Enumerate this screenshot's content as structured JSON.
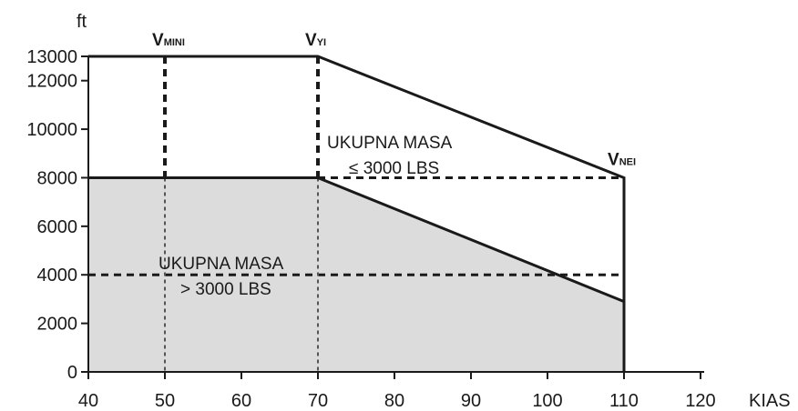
{
  "chart_data": {
    "type": "area",
    "xlabel": "KIAS",
    "ylabel": "ft",
    "xlim": [
      40,
      120
    ],
    "ylim": [
      0,
      13000
    ],
    "x_ticks": [
      "40",
      "50",
      "60",
      "70",
      "80",
      "90",
      "100",
      "110",
      "120"
    ],
    "y_ticks": [
      "0",
      "2000",
      "4000",
      "6000",
      "8000",
      "10000",
      "12000",
      "13000"
    ],
    "grid": false,
    "envelopes": [
      {
        "label_line1": "UKUPNA MASA",
        "label_line2": "≤ 3000 LBS",
        "points": [
          [
            40,
            13000
          ],
          [
            70,
            13000
          ],
          [
            110,
            8000
          ],
          [
            110,
            0
          ]
        ]
      },
      {
        "label_line1": "UKUPNA MASA",
        "label_line2": "> 3000 LBS",
        "fill": "#dcdcdc",
        "points": [
          [
            40,
            8000
          ],
          [
            70,
            8000
          ],
          [
            110,
            2900
          ],
          [
            110,
            0
          ]
        ]
      }
    ],
    "speed_markers": [
      {
        "main": "V",
        "sub": "MINI",
        "x": 50
      },
      {
        "main": "V",
        "sub": "YI",
        "x": 70
      },
      {
        "main": "V",
        "sub": "NEI",
        "x": 110,
        "y": 8000
      }
    ],
    "reference_lines": [
      {
        "orientation": "horizontal",
        "y": 8000,
        "x_from": 70,
        "x_to": 110,
        "style": "dashed"
      },
      {
        "orientation": "horizontal",
        "y": 4000,
        "x_from": 40,
        "x_to": 110,
        "style": "dashed"
      }
    ]
  }
}
